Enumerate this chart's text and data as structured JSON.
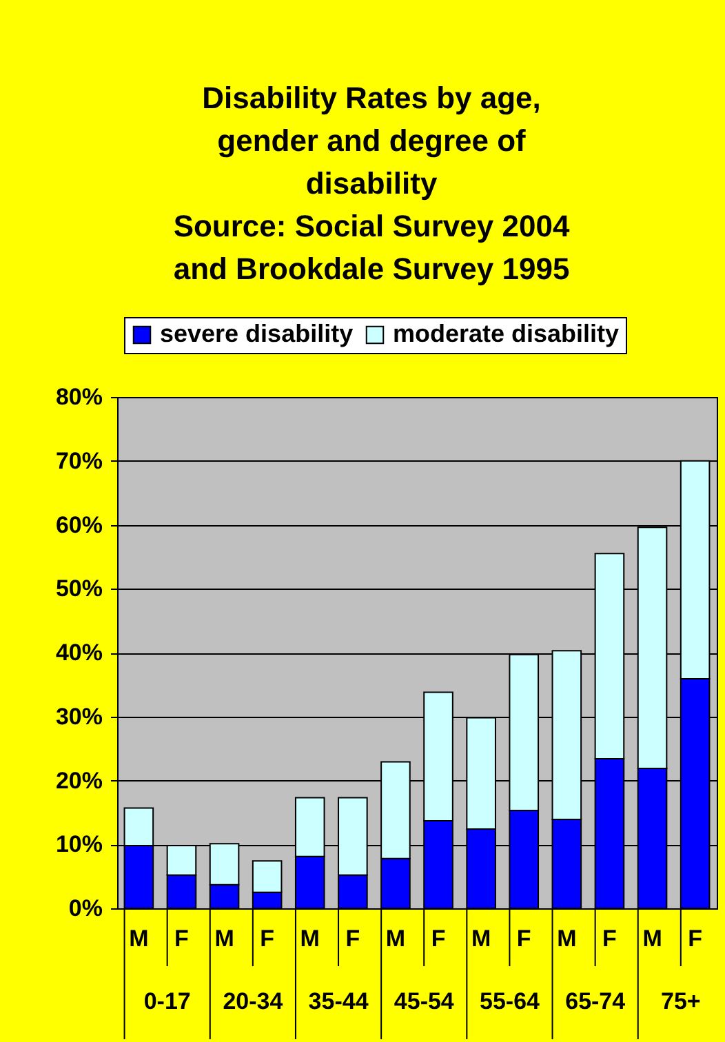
{
  "chart_data": {
    "type": "bar",
    "stacked": true,
    "title": "Disability Rates by age, gender and degree of disability",
    "subtitle": "Source: Social Survey 2004 and Brookdale Survey 1995",
    "categories": [
      "M",
      "F",
      "M",
      "F",
      "M",
      "F",
      "M",
      "F",
      "M",
      "F",
      "M",
      "F",
      "M",
      "F"
    ],
    "annotations": [
      "0-17",
      "20-34",
      "35-44",
      "45-54",
      "55-64",
      "65-74",
      "75+"
    ],
    "series": [
      {
        "name": "severe disability",
        "color": "#0000ff",
        "values": [
          9.8,
          5.2,
          3.7,
          2.5,
          8.1,
          5.2,
          7.8,
          13.7,
          12.4,
          15.3,
          13.9,
          23.4,
          21.9,
          35.9
        ]
      },
      {
        "name": "moderate disability",
        "color": "#ccffff",
        "values": [
          5.9,
          4.6,
          6.4,
          4.9,
          9.2,
          12.1,
          15.1,
          20.1,
          17.4,
          24.4,
          26.4,
          32.1,
          37.7,
          34.1
        ]
      }
    ],
    "ylim": [
      0,
      80
    ],
    "yticks": [
      {
        "value": 0,
        "label": "0%"
      },
      {
        "value": 10,
        "label": "10%"
      },
      {
        "value": 20,
        "label": "20%"
      },
      {
        "value": 30,
        "label": "30%"
      },
      {
        "value": 40,
        "label": "40%"
      },
      {
        "value": 50,
        "label": "50%"
      },
      {
        "value": 60,
        "label": "60%"
      },
      {
        "value": 70,
        "label": "70%"
      },
      {
        "value": 80,
        "label": "80%"
      }
    ],
    "grid": "y",
    "legend": "top"
  }
}
